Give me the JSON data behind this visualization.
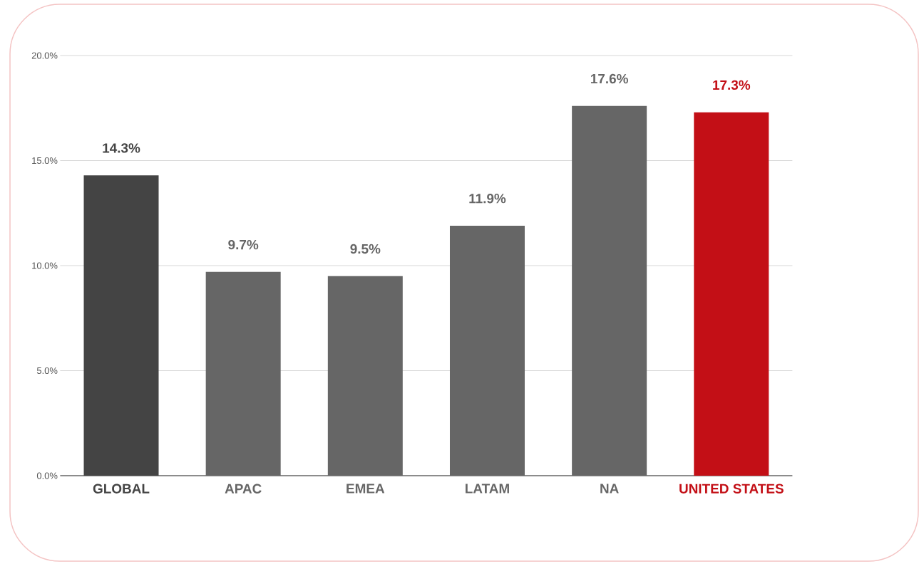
{
  "chart_data": {
    "type": "bar",
    "categories": [
      "GLOBAL",
      "APAC",
      "EMEA",
      "LATAM",
      "NA",
      "UNITED STATES"
    ],
    "values": [
      14.3,
      9.7,
      9.5,
      11.9,
      17.6,
      17.3
    ],
    "colors": [
      "#444444",
      "#666666",
      "#666666",
      "#666666",
      "#666666",
      "#c30f16"
    ],
    "value_labels": [
      "14.3%",
      "9.7%",
      "9.5%",
      "11.9%",
      "17.6%",
      "17.3%"
    ],
    "ylim": [
      0,
      20
    ],
    "yticks": [
      {
        "value": 0,
        "label": "0.0%"
      },
      {
        "value": 5,
        "label": "5.0%"
      },
      {
        "value": 10,
        "label": "10.0%"
      },
      {
        "value": 15,
        "label": "15.0%"
      },
      {
        "value": 20,
        "label": "20.0%"
      }
    ],
    "grid": "y"
  }
}
